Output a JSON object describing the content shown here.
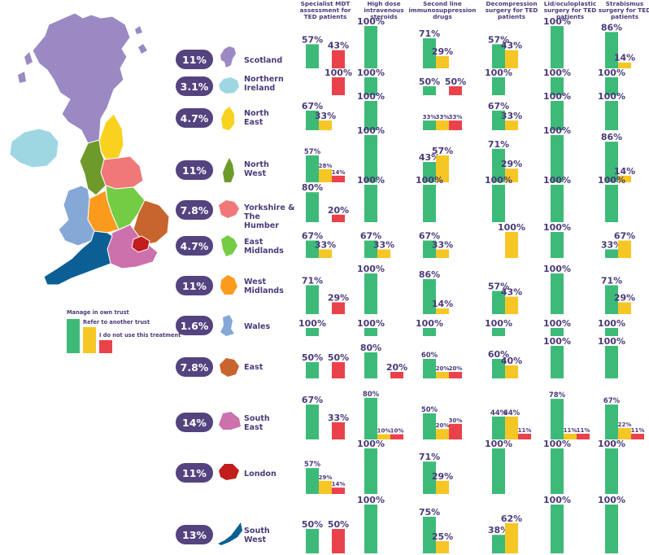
{
  "legend": {
    "manage": "Manage in own trust",
    "refer": "Refer to another trust",
    "none": "I do not use this treatment"
  },
  "colors": {
    "manage": "#3dba78",
    "refer": "#f6c625",
    "none": "#e9424a",
    "pill": "#54437f",
    "text": "#4b3a78"
  },
  "regions": [
    {
      "id": "scotland",
      "pct": "11%",
      "name": "Scotland",
      "color": "#9b89c4"
    },
    {
      "id": "northern-ireland",
      "pct": "3.1%",
      "name": "Northern\nIreland",
      "color": "#9ed6e2"
    },
    {
      "id": "north-east",
      "pct": "4.7%",
      "name": "North\nEast",
      "color": "#f8d21f"
    },
    {
      "id": "north-west",
      "pct": "11%",
      "name": "North\nWest",
      "color": "#6d9a2a"
    },
    {
      "id": "yorkshire",
      "pct": "7.8%",
      "name": "Yorkshire &\nThe Humber",
      "color": "#f07878"
    },
    {
      "id": "east-midlands",
      "pct": "4.7%",
      "name": "East\nMidlands",
      "color": "#74cc44"
    },
    {
      "id": "west-midlands",
      "pct": "11%",
      "name": "West\nMidlands",
      "color": "#fb9b1d"
    },
    {
      "id": "wales",
      "pct": "1.6%",
      "name": "Wales",
      "color": "#85a8d6"
    },
    {
      "id": "east",
      "pct": "7.8%",
      "name": "East",
      "color": "#c8652e"
    },
    {
      "id": "south-east",
      "pct": "14%",
      "name": "South\nEast",
      "color": "#cc71ab"
    },
    {
      "id": "london",
      "pct": "11%",
      "name": "London",
      "color": "#c21e1e"
    },
    {
      "id": "south-west",
      "pct": "13%",
      "name": "South\nWest",
      "color": "#0b5f94"
    }
  ],
  "chart_data": {
    "type": "bar",
    "unit": "%",
    "categories": [
      "Specialist MDT assessment for TED patients",
      "High dose intravenous steroids",
      "Second line immunosuppression drugs",
      "Decompression surgery for TED patients",
      "Lid/oculoplastic surgery for TED patients",
      "Strabismus surgery for TED patients"
    ],
    "category_title_lines": [
      [
        "Specialist MDT",
        "assessment for",
        "TED patients"
      ],
      [
        "High dose",
        "intravenous",
        "steroids"
      ],
      [
        "Second line",
        "immunosuppression",
        "drugs"
      ],
      [
        "Decompression",
        "surgery for TED",
        "patients"
      ],
      [
        "Lid/oculoplastic",
        "surgery for TED",
        "patients"
      ],
      [
        "Strabismus",
        "surgery for TED",
        "patients"
      ]
    ],
    "series_names": [
      "Manage in own trust",
      "Refer to another trust",
      "I do not use this treatment"
    ],
    "rows": [
      {
        "region": "Scotland",
        "values": [
          [
            57,
            0,
            43
          ],
          [
            100,
            0,
            0
          ],
          [
            71,
            29,
            0
          ],
          [
            57,
            43,
            0
          ],
          [
            100,
            0,
            0
          ],
          [
            86,
            14,
            0
          ]
        ]
      },
      {
        "region": "Northern Ireland",
        "values": [
          [
            0,
            0,
            100
          ],
          [
            100,
            0,
            0
          ],
          [
            50,
            0,
            50
          ],
          [
            100,
            0,
            0
          ],
          [
            100,
            0,
            0
          ],
          [
            100,
            0,
            0
          ]
        ]
      },
      {
        "region": "North East",
        "values": [
          [
            67,
            33,
            0
          ],
          [
            100,
            0,
            0
          ],
          [
            33,
            33,
            33
          ],
          [
            67,
            33,
            0
          ],
          [
            100,
            0,
            0
          ],
          [
            100,
            0,
            0
          ]
        ]
      },
      {
        "region": "North West",
        "values": [
          [
            57,
            28,
            14
          ],
          [
            100,
            0,
            0
          ],
          [
            43,
            57,
            0
          ],
          [
            71,
            29,
            0
          ],
          [
            100,
            0,
            0
          ],
          [
            86,
            14,
            0
          ]
        ]
      },
      {
        "region": "Yorkshire & The Humber",
        "values": [
          [
            80,
            0,
            20
          ],
          [
            100,
            0,
            0
          ],
          [
            100,
            0,
            0
          ],
          [
            100,
            0,
            0
          ],
          [
            100,
            0,
            0
          ],
          [
            100,
            0,
            0
          ]
        ]
      },
      {
        "region": "East Midlands",
        "values": [
          [
            67,
            33,
            0
          ],
          [
            67,
            33,
            0
          ],
          [
            67,
            33,
            0
          ],
          [
            0,
            100,
            0
          ],
          [
            100,
            0,
            0
          ],
          [
            33,
            67,
            0
          ]
        ]
      },
      {
        "region": "West Midlands",
        "values": [
          [
            71,
            0,
            29
          ],
          [
            100,
            0,
            0
          ],
          [
            86,
            14,
            0
          ],
          [
            57,
            43,
            0
          ],
          [
            100,
            0,
            0
          ],
          [
            71,
            29,
            0
          ]
        ]
      },
      {
        "region": "Wales",
        "values": [
          [
            100,
            0,
            0
          ],
          [
            100,
            0,
            0
          ],
          [
            100,
            0,
            0
          ],
          [
            100,
            0,
            0
          ],
          [
            100,
            0,
            0
          ],
          [
            100,
            0,
            0
          ]
        ]
      },
      {
        "region": "East",
        "values": [
          [
            50,
            0,
            50
          ],
          [
            80,
            0,
            20
          ],
          [
            60,
            20,
            20
          ],
          [
            60,
            40,
            0
          ],
          [
            100,
            0,
            0
          ],
          [
            100,
            0,
            0
          ]
        ]
      },
      {
        "region": "South East",
        "values": [
          [
            67,
            0,
            33
          ],
          [
            80,
            10,
            10
          ],
          [
            50,
            20,
            30
          ],
          [
            44,
            44,
            11
          ],
          [
            78,
            11,
            11
          ],
          [
            67,
            22,
            11
          ]
        ]
      },
      {
        "region": "London",
        "values": [
          [
            57,
            29,
            14
          ],
          [
            100,
            0,
            0
          ],
          [
            71,
            29,
            0
          ],
          [
            100,
            0,
            0
          ],
          [
            100,
            0,
            0
          ],
          [
            100,
            0,
            0
          ]
        ]
      },
      {
        "region": "South West",
        "values": [
          [
            50,
            0,
            50
          ],
          [
            100,
            0,
            0
          ],
          [
            75,
            25,
            0
          ],
          [
            38,
            62,
            0
          ],
          [
            100,
            0,
            0
          ],
          [
            100,
            0,
            0
          ]
        ]
      }
    ]
  }
}
